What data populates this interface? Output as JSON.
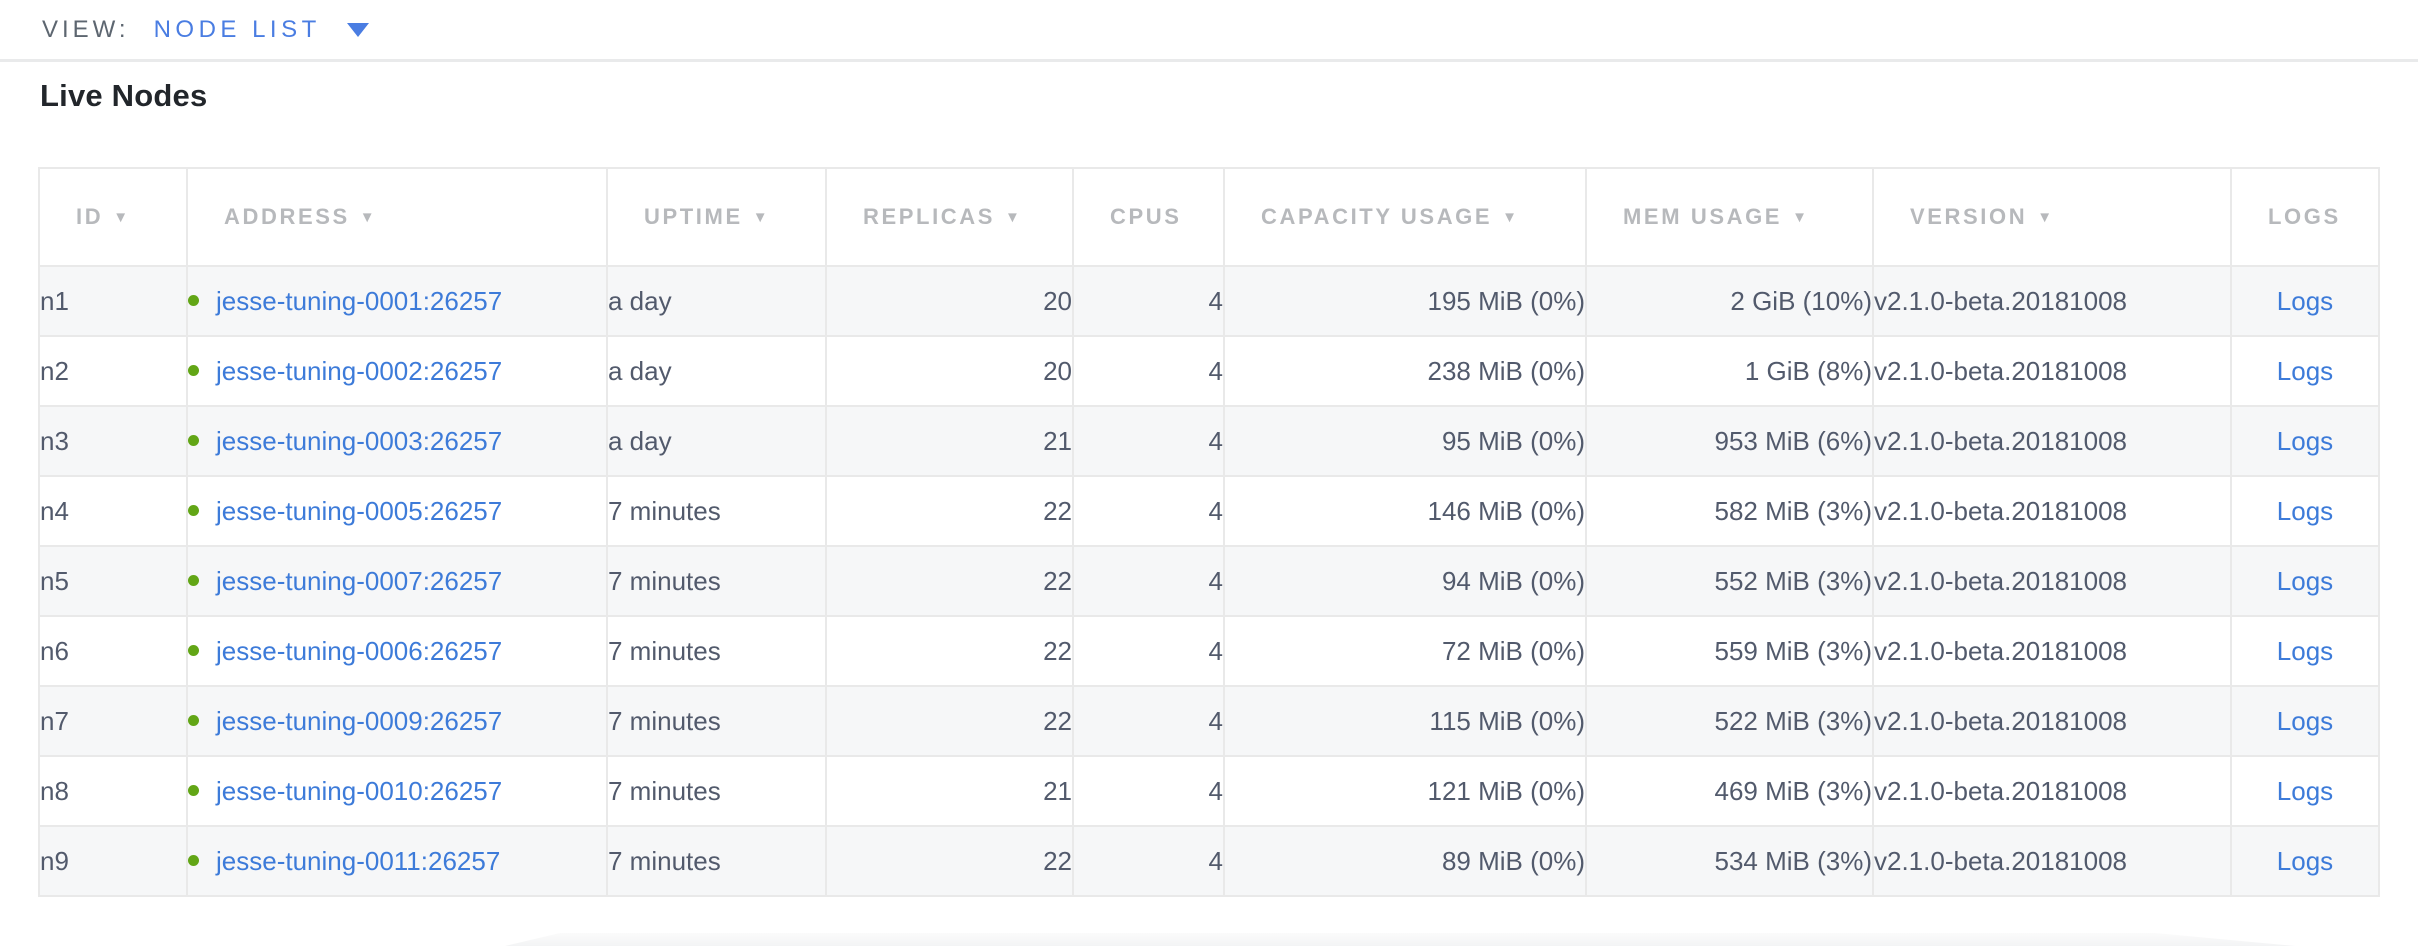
{
  "view_bar": {
    "label": "VIEW:",
    "selected": "NODE LIST"
  },
  "page": {
    "title": "Live Nodes"
  },
  "icons": {
    "dropdown_arrow": "▼",
    "sort_desc": "▼",
    "live_dot": "●"
  },
  "colors": {
    "accent_blue": "#4a7de2",
    "link_blue": "#3d7bd9",
    "live_green": "#62a616",
    "header_gray": "#b7b9bc",
    "body_text": "#525a6c"
  },
  "table": {
    "columns": [
      {
        "key": "id",
        "label": "ID",
        "sortable": true
      },
      {
        "key": "address",
        "label": "ADDRESS",
        "sortable": true
      },
      {
        "key": "uptime",
        "label": "UPTIME",
        "sortable": true
      },
      {
        "key": "replicas",
        "label": "REPLICAS",
        "sortable": true
      },
      {
        "key": "cpus",
        "label": "CPUS",
        "sortable": false
      },
      {
        "key": "capacity",
        "label": "CAPACITY USAGE",
        "sortable": true
      },
      {
        "key": "mem",
        "label": "MEM USAGE",
        "sortable": true
      },
      {
        "key": "version",
        "label": "VERSION",
        "sortable": true
      },
      {
        "key": "logs",
        "label": "LOGS",
        "sortable": false
      }
    ],
    "rows": [
      {
        "id": "n1",
        "status": "live",
        "address": "jesse-tuning-0001:26257",
        "uptime": "a day",
        "replicas": "20",
        "cpus": "4",
        "capacity": "195 MiB (0%)",
        "mem": "2 GiB (10%)",
        "version": "v2.1.0-beta.20181008",
        "logs": "Logs"
      },
      {
        "id": "n2",
        "status": "live",
        "address": "jesse-tuning-0002:26257",
        "uptime": "a day",
        "replicas": "20",
        "cpus": "4",
        "capacity": "238 MiB (0%)",
        "mem": "1 GiB (8%)",
        "version": "v2.1.0-beta.20181008",
        "logs": "Logs"
      },
      {
        "id": "n3",
        "status": "live",
        "address": "jesse-tuning-0003:26257",
        "uptime": "a day",
        "replicas": "21",
        "cpus": "4",
        "capacity": "95 MiB (0%)",
        "mem": "953 MiB (6%)",
        "version": "v2.1.0-beta.20181008",
        "logs": "Logs"
      },
      {
        "id": "n4",
        "status": "live",
        "address": "jesse-tuning-0005:26257",
        "uptime": "7 minutes",
        "replicas": "22",
        "cpus": "4",
        "capacity": "146 MiB (0%)",
        "mem": "582 MiB (3%)",
        "version": "v2.1.0-beta.20181008",
        "logs": "Logs"
      },
      {
        "id": "n5",
        "status": "live",
        "address": "jesse-tuning-0007:26257",
        "uptime": "7 minutes",
        "replicas": "22",
        "cpus": "4",
        "capacity": "94 MiB (0%)",
        "mem": "552 MiB (3%)",
        "version": "v2.1.0-beta.20181008",
        "logs": "Logs"
      },
      {
        "id": "n6",
        "status": "live",
        "address": "jesse-tuning-0006:26257",
        "uptime": "7 minutes",
        "replicas": "22",
        "cpus": "4",
        "capacity": "72 MiB (0%)",
        "mem": "559 MiB (3%)",
        "version": "v2.1.0-beta.20181008",
        "logs": "Logs"
      },
      {
        "id": "n7",
        "status": "live",
        "address": "jesse-tuning-0009:26257",
        "uptime": "7 minutes",
        "replicas": "22",
        "cpus": "4",
        "capacity": "115 MiB (0%)",
        "mem": "522 MiB (3%)",
        "version": "v2.1.0-beta.20181008",
        "logs": "Logs"
      },
      {
        "id": "n8",
        "status": "live",
        "address": "jesse-tuning-0010:26257",
        "uptime": "7 minutes",
        "replicas": "21",
        "cpus": "4",
        "capacity": "121 MiB (0%)",
        "mem": "469 MiB (3%)",
        "version": "v2.1.0-beta.20181008",
        "logs": "Logs"
      },
      {
        "id": "n9",
        "status": "live",
        "address": "jesse-tuning-0011:26257",
        "uptime": "7 minutes",
        "replicas": "22",
        "cpus": "4",
        "capacity": "89 MiB (0%)",
        "mem": "534 MiB (3%)",
        "version": "v2.1.0-beta.20181008",
        "logs": "Logs"
      }
    ]
  }
}
